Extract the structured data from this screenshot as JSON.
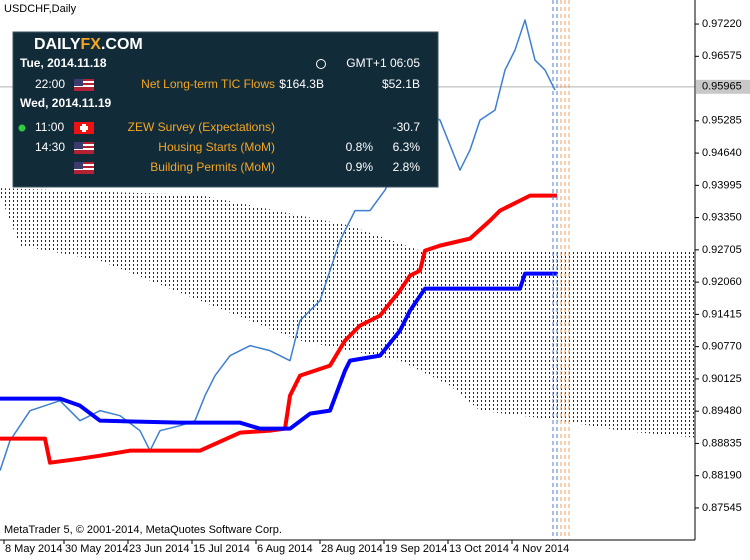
{
  "chart_data": {
    "type": "line",
    "title": "USDCHF,Daily",
    "footer": "MetaTrader 5, © 2001-2014, MetaQuotes Software Corp.",
    "xlim": [
      0,
      173.75
    ],
    "xticks": [
      {
        "value": 1,
        "label": "8 May 2014"
      },
      {
        "value": 16,
        "label": "30 May 2014"
      },
      {
        "value": 32,
        "label": "23 Jun 2014"
      },
      {
        "value": 48,
        "label": "15 Jul 2014"
      },
      {
        "value": 64,
        "label": "6 Aug 2014"
      },
      {
        "value": 80,
        "label": "28 Aug 2014"
      },
      {
        "value": 96,
        "label": "19 Sep 2014"
      },
      {
        "value": 112,
        "label": "13 Oct 2014"
      },
      {
        "value": 128,
        "label": "4 Nov 2014"
      }
    ],
    "ylim": [
      0.86904,
      0.97701
    ],
    "yticks": [
      {
        "value": 0.9722,
        "label": "0.97220"
      },
      0.96575,
      0.95285,
      {
        "value": 0.9464,
        "label": "0.94640"
      },
      0.93995,
      {
        "value": 0.9335,
        "label": "0.93350"
      },
      0.92705,
      {
        "value": 0.9206,
        "label": "0.92060"
      },
      0.91415,
      {
        "value": 0.9077,
        "label": "0.90770"
      },
      0.90125,
      {
        "value": 0.8948,
        "label": "0.89480"
      },
      0.88835,
      {
        "value": 0.8819,
        "label": "0.88190"
      },
      0.87545
    ],
    "last_price": 0.95965,
    "series": [
      {
        "color": "#3d7fd0",
        "width": 1.5,
        "x": [
          0,
          2.5,
          7.5,
          15,
          20,
          25,
          30,
          35,
          37.5,
          40,
          45,
          48.75,
          51.25,
          53.75,
          57.5,
          62.5,
          67.5,
          72.5,
          75,
          80,
          85,
          88.75,
          92.5,
          96.25,
          100,
          105,
          110,
          115,
          117.5,
          120,
          123.75,
          126.25,
          128.75,
          131.25,
          133.75,
          136.25,
          138.75
        ],
        "values": [
          0.8829,
          0.8889,
          0.8949,
          0.8969,
          0.8929,
          0.8949,
          0.8939,
          0.8909,
          0.8869,
          0.8909,
          0.8919,
          0.8929,
          0.8979,
          0.9019,
          0.9059,
          0.9079,
          0.9069,
          0.9049,
          0.9129,
          0.9169,
          0.9289,
          0.9349,
          0.9349,
          0.939,
          0.945,
          0.955,
          0.953,
          0.943,
          0.947,
          0.953,
          0.955,
          0.963,
          0.967,
          0.973,
          0.965,
          0.963,
          0.959
        ]
      },
      {
        "color": "#ff0000",
        "width": 4,
        "x": [
          0,
          11.25,
          12.5,
          20,
          25,
          32.5,
          50,
          60,
          67.5,
          71.25,
          72.5,
          75,
          82.5,
          86.25,
          90,
          95,
          100,
          102.5,
          105,
          106.25,
          110,
          117.5,
          122.5,
          125,
          130,
          132.5,
          139.25
        ],
        "values": [
          0.8893,
          0.8893,
          0.8845,
          0.8853,
          0.8859,
          0.8869,
          0.8869,
          0.8905,
          0.8909,
          0.8913,
          0.8979,
          0.9019,
          0.9039,
          0.9089,
          0.9119,
          0.9139,
          0.9189,
          0.9219,
          0.9229,
          0.9269,
          0.9279,
          0.9293,
          0.9329,
          0.9349,
          0.9369,
          0.9379,
          0.9379
        ]
      },
      {
        "color": "#0000ff",
        "width": 4,
        "x": [
          0,
          15,
          20,
          25,
          45,
          60,
          65,
          72.5,
          77.5,
          82.5,
          86.25,
          87.5,
          95,
          100,
          102.5,
          106.25,
          130,
          131.25,
          139.25
        ],
        "values": [
          0.8973,
          0.8973,
          0.8959,
          0.8929,
          0.8925,
          0.8925,
          0.8913,
          0.8913,
          0.8943,
          0.8949,
          0.9029,
          0.9049,
          0.9059,
          0.9109,
          0.9149,
          0.9193,
          0.9193,
          0.9223,
          0.9223
        ]
      }
    ],
    "cloud": {
      "color": "#000000",
      "upper": {
        "x": [
          0,
          50,
          87.5,
          105,
          173.75
        ],
        "values": [
          0.9394,
          0.938,
          0.9319,
          0.9269,
          0.9269
        ]
      },
      "lower": {
        "x": [
          0,
          5,
          25,
          50,
          75,
          100,
          112.5,
          120,
          140,
          155,
          173.75
        ],
        "values": [
          0.938,
          0.9279,
          0.9249,
          0.9169,
          0.9089,
          0.9049,
          0.8999,
          0.8949,
          0.8929,
          0.8909,
          0.8895
        ]
      }
    }
  },
  "calendar": {
    "logo": {
      "a": "DAILY",
      "b": "FX",
      "c": ".COM"
    },
    "clock": "GMT+1 06:05",
    "days": [
      {
        "date": "Tue, 2014.11.18",
        "events": [
          {
            "time": "22:00",
            "name": "Net Long-term TIC Flows",
            "forecast": "$164.3B",
            "actual": "$52.1B"
          }
        ]
      },
      {
        "date": "Wed, 2014.11.19",
        "events": [
          {
            "time": "11:00",
            "name": "ZEW Survey (Expectations)",
            "actual": "-30.7"
          },
          {
            "time": "14:30",
            "name": "Housing Starts (MoM)",
            "forecast": "0.8%",
            "actual": "6.3%"
          },
          {
            "name": "Building Permits (MoM)",
            "forecast": "0.9%",
            "actual": "2.8%"
          }
        ]
      }
    ]
  }
}
